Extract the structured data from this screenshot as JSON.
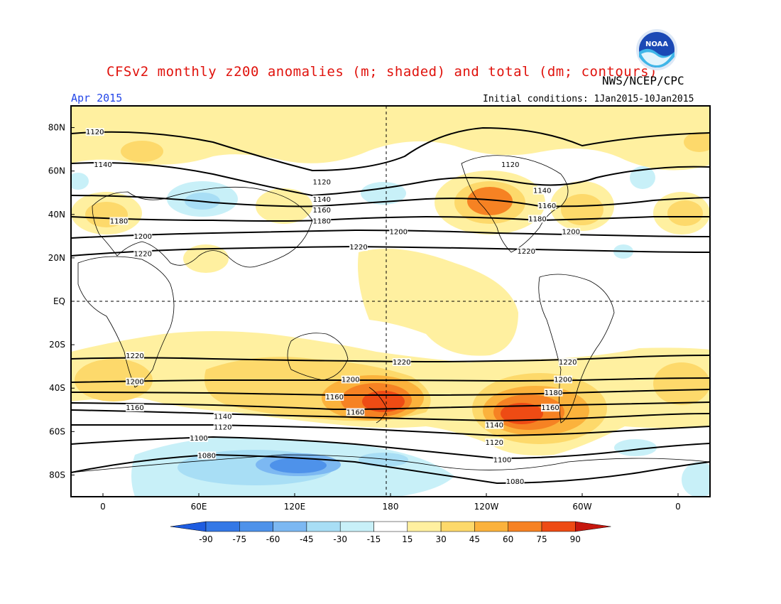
{
  "header": {
    "title": "CFSv2 monthly z200 anomalies (m; shaded) and total (dm; contours)",
    "agency": "NWS/NCEP/CPC",
    "month": "Apr 2015",
    "initial_conditions": "Initial conditions: 1Jan2015-10Jan2015",
    "logo_text": "NOAA"
  },
  "map": {
    "lat_labels": [
      "80N",
      "60N",
      "40N",
      "20N",
      "EQ",
      "20S",
      "40S",
      "60S",
      "80S"
    ],
    "lon_labels": [
      "0",
      "60E",
      "120E",
      "180",
      "120W",
      "60W",
      "0"
    ],
    "contour_labels": [
      {
        "text": "1120",
        "lat": 78,
        "lon": -5
      },
      {
        "text": "1140",
        "lat": 63,
        "lon": 0
      },
      {
        "text": "1120",
        "lat": 55,
        "lon": 137
      },
      {
        "text": "1140",
        "lat": 47,
        "lon": 137
      },
      {
        "text": "1160",
        "lat": 42,
        "lon": 137
      },
      {
        "text": "1180",
        "lat": 37,
        "lon": 137
      },
      {
        "text": "1180",
        "lat": 37,
        "lon": 10
      },
      {
        "text": "1200",
        "lat": 30,
        "lon": 25
      },
      {
        "text": "1220",
        "lat": 22,
        "lon": 25
      },
      {
        "text": "1200",
        "lat": 32,
        "lon": -175
      },
      {
        "text": "1220",
        "lat": 25,
        "lon": 160
      },
      {
        "text": "1120",
        "lat": 63,
        "lon": -105
      },
      {
        "text": "1140",
        "lat": 51,
        "lon": -85
      },
      {
        "text": "1160",
        "lat": 44,
        "lon": -82
      },
      {
        "text": "1180",
        "lat": 38,
        "lon": -88
      },
      {
        "text": "1200",
        "lat": 32,
        "lon": -67
      },
      {
        "text": "1220",
        "lat": 23,
        "lon": -95
      },
      {
        "text": "1220",
        "lat": -25,
        "lon": 20
      },
      {
        "text": "1200",
        "lat": -37,
        "lon": 20
      },
      {
        "text": "1160",
        "lat": -49,
        "lon": 20
      },
      {
        "text": "1220",
        "lat": -28,
        "lon": -173
      },
      {
        "text": "1200",
        "lat": -36,
        "lon": 155
      },
      {
        "text": "1160",
        "lat": -44,
        "lon": 145
      },
      {
        "text": "1160",
        "lat": -51,
        "lon": 158
      },
      {
        "text": "1140",
        "lat": -53,
        "lon": 75
      },
      {
        "text": "1120",
        "lat": -58,
        "lon": 75
      },
      {
        "text": "1100",
        "lat": -63,
        "lon": 60
      },
      {
        "text": "1080",
        "lat": -71,
        "lon": 65
      },
      {
        "text": "1220",
        "lat": -28,
        "lon": -69
      },
      {
        "text": "1200",
        "lat": -36,
        "lon": -72
      },
      {
        "text": "1180",
        "lat": -42,
        "lon": -78
      },
      {
        "text": "1160",
        "lat": -49,
        "lon": -80
      },
      {
        "text": "1140",
        "lat": -57,
        "lon": -115
      },
      {
        "text": "1120",
        "lat": -65,
        "lon": -115
      },
      {
        "text": "1100",
        "lat": -73,
        "lon": -110
      },
      {
        "text": "1080",
        "lat": -83,
        "lon": -102
      }
    ]
  },
  "colorbar": {
    "labels": [
      "-90",
      "-75",
      "-60",
      "-45",
      "-30",
      "-15",
      "15",
      "30",
      "45",
      "60",
      "75",
      "90"
    ],
    "colors": {
      "neg90": "#1e5ce0",
      "neg75": "#3478e6",
      "neg60": "#4e92ea",
      "neg45": "#7cb8f2",
      "neg30": "#a8def5",
      "neg15": "#c8f0f8",
      "zero": "#ffffff",
      "pos15": "#fff0a0",
      "pos30": "#fdd96b",
      "pos45": "#fbb23c",
      "pos60": "#f68223",
      "pos75": "#ee4b14",
      "pos90": "#c6170e"
    }
  }
}
